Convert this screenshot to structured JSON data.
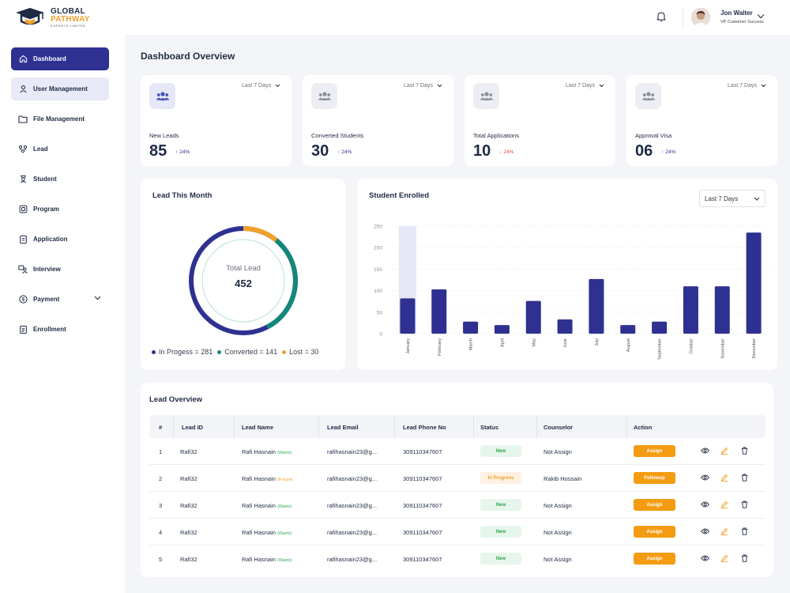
{
  "brand": {
    "line1": "GLOBAL",
    "line2": "PATHWAY",
    "line3": "EXPERTS LIMITED"
  },
  "sidebar": {
    "items": [
      {
        "label": "Dashboard",
        "icon": "home-icon",
        "state": "active"
      },
      {
        "label": "User Management",
        "icon": "user-icon",
        "state": "hover"
      },
      {
        "label": "File Management",
        "icon": "folder-icon"
      },
      {
        "label": "Lead",
        "icon": "lead-icon"
      },
      {
        "label": "Student",
        "icon": "student-icon"
      },
      {
        "label": "Program",
        "icon": "program-icon"
      },
      {
        "label": "Application",
        "icon": "application-icon"
      },
      {
        "label": "Interview",
        "icon": "interview-icon"
      },
      {
        "label": "Payment",
        "icon": "payment-icon"
      },
      {
        "label": "Enrollment",
        "icon": "enrollment-icon"
      }
    ]
  },
  "header": {
    "user_name": "Jon Walter",
    "user_role": "VP Customer Success"
  },
  "page": {
    "title": "Dashboard Overview"
  },
  "stats": [
    {
      "label": "New Leads",
      "value": "85",
      "change": "24%",
      "direction": "up",
      "range": "Last 7 Days"
    },
    {
      "label": "Converted Students",
      "value": "30",
      "change": "24%",
      "direction": "up",
      "range": "Last 7 Days"
    },
    {
      "label": "Total Applications",
      "value": "10",
      "change": "24%",
      "direction": "down",
      "range": "Last 7 Days"
    },
    {
      "label": "Approval Visa",
      "value": "06",
      "change": "24%",
      "direction": "up",
      "range": "Last 7 Days"
    }
  ],
  "lead_month": {
    "title": "Lead  This Month",
    "center_label": "Total Lead",
    "center_value": "452",
    "legend": [
      {
        "label": "In Progess = 281",
        "color": "#2e3191"
      },
      {
        "label": "Converted = 141",
        "color": "#13877a"
      },
      {
        "label": "Lost = 30",
        "color": "#f0a12b"
      }
    ]
  },
  "enrolled": {
    "title": "Student Enrolled",
    "range": "Last 7 Days"
  },
  "chart_data": {
    "type": "bar",
    "title": "Student Enrolled",
    "categories": [
      "January",
      "February",
      "March",
      "April",
      "May",
      "June",
      "July",
      "August",
      "September",
      "October",
      "November",
      "December"
    ],
    "values": [
      82,
      103,
      28,
      20,
      76,
      33,
      127,
      20,
      28,
      110,
      110,
      235
    ],
    "highlight_index": 0,
    "highlight_value": 250,
    "yticks": [
      "0",
      "50",
      "100",
      "150",
      "200",
      "250"
    ],
    "ylim": [
      0,
      250
    ],
    "bar_color": "#2e3191",
    "highlight_color": "#e6e7f4"
  },
  "lead_overview": {
    "title": "Lead  Overview",
    "columns": [
      "#",
      "Lead ID",
      "Lead Name",
      "Lead Email",
      "Lead  Phone No",
      "Status",
      "Counselor",
      "Action"
    ],
    "rows": [
      {
        "num": "1",
        "id": "Rafi32",
        "name": "Rafi Hasnain",
        "tag": "(Warm)",
        "tag_type": "warm",
        "email": "rafihasnain23@g...",
        "phone": "309110347607",
        "status": "New",
        "status_type": "new",
        "counselor": "Not Assign",
        "action": "Assign"
      },
      {
        "num": "2",
        "id": "Rafi32",
        "name": "Rafi Hasnain",
        "tag": "(Future)",
        "tag_type": "future",
        "email": "rafihasnain23@g...",
        "phone": "309110347607",
        "status": "In Progress",
        "status_type": "prog",
        "counselor": "Rakib Hossain",
        "action": "Followup"
      },
      {
        "num": "3",
        "id": "Rafi32",
        "name": "Rafi Hasnain",
        "tag": "(Warm)",
        "tag_type": "warm",
        "email": "rafihasnain23@g...",
        "phone": "309110347607",
        "status": "New",
        "status_type": "new",
        "counselor": "Not Assign",
        "action": "Assign"
      },
      {
        "num": "4",
        "id": "Rafi32",
        "name": "Rafi Hasnain",
        "tag": "(Warm)",
        "tag_type": "warm",
        "email": "rafihasnain23@g...",
        "phone": "309110347607",
        "status": "New",
        "status_type": "new",
        "counselor": "Not Assign",
        "action": "Assign"
      },
      {
        "num": "5",
        "id": "Rafi32",
        "name": "Rafi Hasnain",
        "tag": "(Warm)",
        "tag_type": "warm",
        "email": "rafihasnain23@g...",
        "phone": "309110347607",
        "status": "New",
        "status_type": "new",
        "counselor": "Not Assign",
        "action": "Assign"
      }
    ]
  },
  "colors": {
    "primary": "#2e3191",
    "accent": "#f0a12b",
    "teal": "#13877a",
    "success": "#2fa84f",
    "danger": "#e04646"
  }
}
